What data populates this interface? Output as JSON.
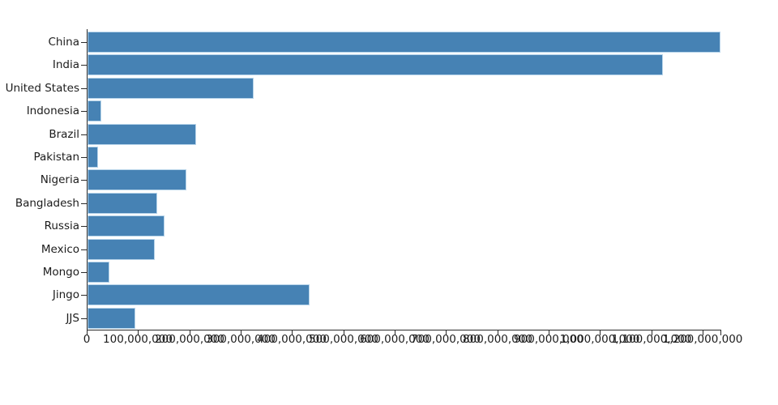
{
  "chart_data": {
    "type": "bar",
    "orientation": "horizontal",
    "categories": [
      "China",
      "India",
      "United States",
      "Indonesia",
      "Brazil",
      "Pakistan",
      "Nigeria",
      "Bangladesh",
      "Russia",
      "Mexico",
      "Mongo",
      "Jingo",
      "JJS"
    ],
    "values": [
      1233000000,
      1121000000,
      324000000,
      27000000,
      212000000,
      21000000,
      193000000,
      136000000,
      150000000,
      131000000,
      43000000,
      433000000,
      93000000
    ],
    "x_axis": {
      "min": 0,
      "max": 1233000000,
      "tick_interval": 100000000,
      "tick_labels": [
        "0",
        "100,000,000",
        "200,000,000",
        "300,000,000",
        "400,000,000",
        "500,000,000",
        "600,000,000",
        "700,000,000",
        "800,000,000",
        "900,000,000",
        "1,000,000,000",
        "1,100,000,000",
        "1,200,000,000"
      ]
    },
    "grid": false,
    "legend": false,
    "colors": {
      "bar_fill": "#4682b4",
      "bar_stroke": "#b7d4ea",
      "axis": "#2b2b2b",
      "text": "#1c1c1c"
    }
  }
}
